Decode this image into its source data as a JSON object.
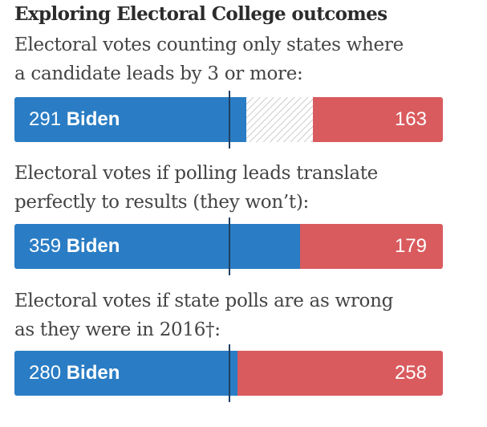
{
  "title": "Exploring Electoral College outcomes",
  "colors": {
    "dem": "#2a7dc4",
    "rep": "#d95b5e",
    "tossup_hatch": "#cfcfcf",
    "threshold_line": "#1f3f63"
  },
  "chart_data": {
    "type": "bar",
    "orientation": "horizontal-stacked",
    "total_electoral_votes": 538,
    "threshold": 270,
    "scenarios": [
      {
        "label_lines": [
          "Electoral votes counting only states where",
          "a candidate leads by 3 or more:"
        ],
        "dem_votes": 291,
        "dem_name": "Biden",
        "rep_votes": 163,
        "tossup_votes": 84
      },
      {
        "label_lines": [
          "Electoral votes if polling leads translate",
          "perfectly to results (they won’t):"
        ],
        "dem_votes": 359,
        "dem_name": "Biden",
        "rep_votes": 179,
        "tossup_votes": 0
      },
      {
        "label_lines": [
          "Electoral votes if state polls are as wrong",
          "as they were in 2016†:"
        ],
        "dem_votes": 280,
        "dem_name": "Biden",
        "rep_votes": 258,
        "tossup_votes": 0
      }
    ]
  }
}
